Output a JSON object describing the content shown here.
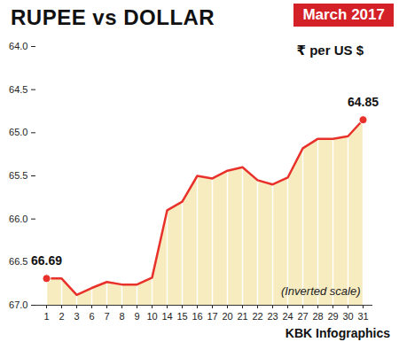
{
  "chart_data": {
    "type": "area",
    "title": "RUPEE vs DOLLAR",
    "subtitle": "March 2017",
    "ylabel": "₹ per US $",
    "annotations": [
      "(Inverted scale)"
    ],
    "source": "KBK Infographics",
    "categories": [
      "1",
      "2",
      "3",
      "6",
      "7",
      "8",
      "9",
      "10",
      "14",
      "15",
      "16",
      "17",
      "20",
      "21",
      "22",
      "23",
      "24",
      "27",
      "28",
      "29",
      "30",
      "31"
    ],
    "values": [
      66.69,
      66.69,
      66.88,
      66.8,
      66.73,
      66.76,
      66.76,
      66.68,
      65.9,
      65.8,
      65.5,
      65.53,
      65.44,
      65.4,
      65.55,
      65.6,
      65.52,
      65.18,
      65.07,
      65.07,
      65.04,
      64.85
    ],
    "value_labels": [
      "66.69",
      null,
      null,
      null,
      null,
      null,
      null,
      null,
      null,
      null,
      null,
      null,
      null,
      null,
      null,
      null,
      null,
      null,
      null,
      null,
      null,
      "64.85"
    ],
    "data_labels": true,
    "color": "#e8312a",
    "ylim": [
      67,
      64
    ],
    "yticks": [
      {
        "value": 64,
        "label": "64.0"
      },
      {
        "value": 64.5,
        "label": "64.5"
      },
      {
        "value": 65,
        "label": "65.0"
      },
      {
        "value": 65.5,
        "label": "65.5"
      },
      {
        "value": 66,
        "label": "66.0"
      },
      {
        "value": 66.5,
        "label": "66.5"
      },
      {
        "value": 67,
        "label": "67.0"
      }
    ],
    "grid": true
  }
}
